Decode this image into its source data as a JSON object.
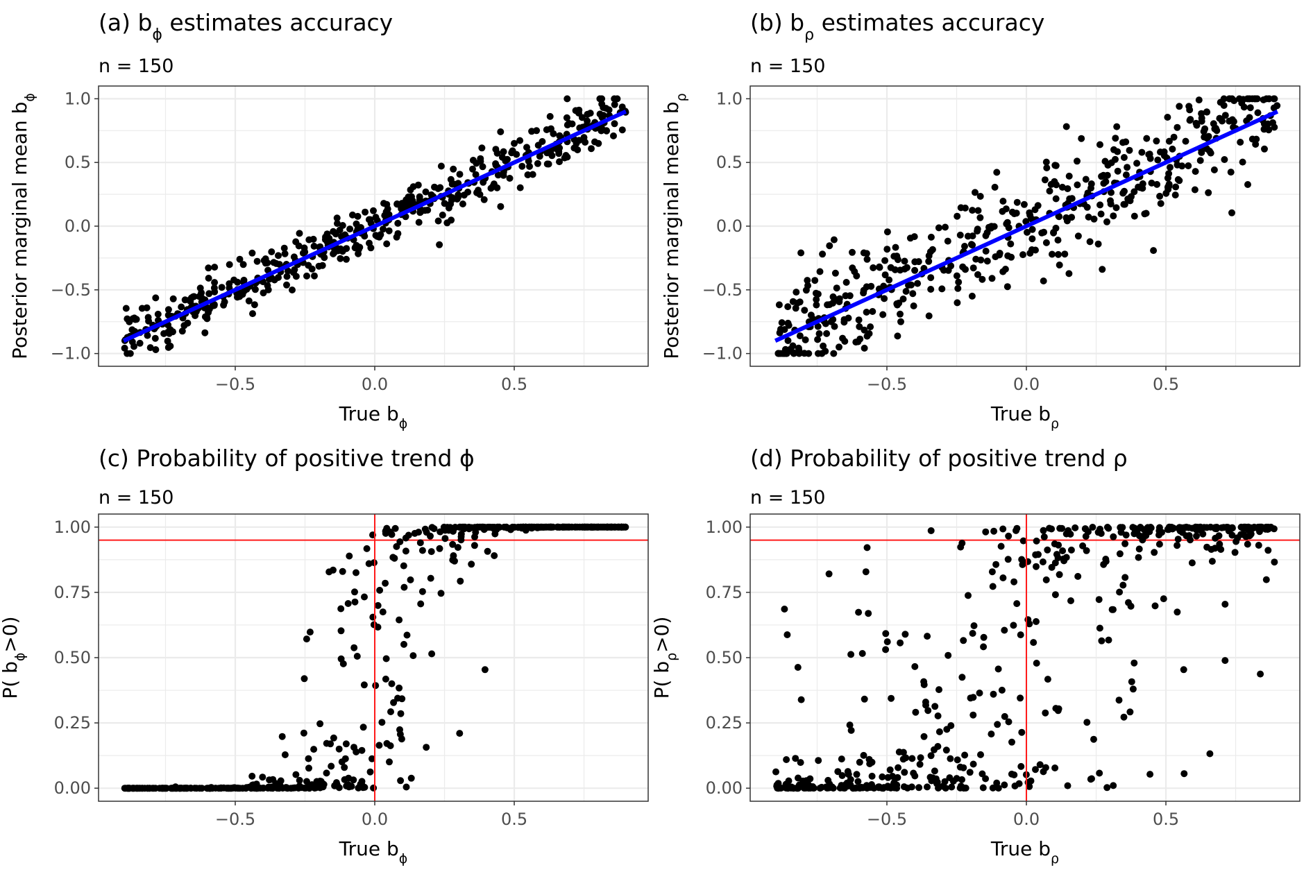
{
  "figure": {
    "panels": [
      "a",
      "b",
      "c",
      "d"
    ]
  },
  "colors": {
    "point": "#000000",
    "fit_line": "#0000ff",
    "reference_line": "#ff1a1a",
    "grid": "#ebebeb",
    "panel_border": "#333333",
    "tick_text": "#4d4d4d"
  },
  "chart_data": [
    {
      "id": "a",
      "type": "scatter",
      "title_prefix": "(a)  b",
      "title_subscript": "ϕ",
      "title_suffix": " estimates accuracy",
      "subtitle": "n = 150",
      "xlabel": "True  b",
      "xlabel_subscript": "ϕ",
      "ylabel": "Posterior marginal mean b",
      "ylabel_subscript": "ϕ",
      "xlim": [
        -0.99,
        0.98
      ],
      "ylim": [
        -1.1,
        1.1
      ],
      "xticks": [
        -0.5,
        0.0,
        0.5
      ],
      "xtick_labels": [
        "−0.5",
        "0.0",
        "0.5"
      ],
      "yticks": [
        -1.0,
        -0.5,
        0.0,
        0.5,
        1.0
      ],
      "ytick_labels": [
        "−1.0",
        "−0.5",
        "0.0",
        "0.5",
        "1.0"
      ],
      "grid": true,
      "fit_line": {
        "x": [
          -0.9,
          0.9
        ],
        "y": [
          -0.9,
          0.9
        ]
      },
      "reference_lines": [],
      "generator": {
        "model": "linear",
        "n_points": 500,
        "x_range": [
          -0.9,
          0.9
        ],
        "noise_sd": 0.1,
        "seed": 11
      },
      "notes": "Points tightly scattered around the 1:1 line from (-0.9,-0.9) to (0.9,0.9)"
    },
    {
      "id": "b",
      "type": "scatter",
      "title_prefix": "(b)  b",
      "title_subscript": "ρ",
      "title_suffix": " estimates accuracy",
      "subtitle": "n = 150",
      "xlabel": "True  b",
      "xlabel_subscript": "ρ",
      "ylabel": "Posterior marginal mean b",
      "ylabel_subscript": "ρ",
      "xlim": [
        -0.99,
        0.98
      ],
      "ylim": [
        -1.1,
        1.1
      ],
      "xticks": [
        -0.5,
        0.0,
        0.5
      ],
      "xtick_labels": [
        "−0.5",
        "0.0",
        "0.5"
      ],
      "yticks": [
        -1.0,
        -0.5,
        0.0,
        0.5,
        1.0
      ],
      "ytick_labels": [
        "−1.0",
        "−0.5",
        "0.0",
        "0.5",
        "1.0"
      ],
      "grid": true,
      "fit_line": {
        "x": [
          -0.9,
          0.9
        ],
        "y": [
          -0.9,
          0.9
        ]
      },
      "reference_lines": [],
      "generator": {
        "model": "linear",
        "n_points": 500,
        "x_range": [
          -0.9,
          0.9
        ],
        "noise_sd": 0.22,
        "seed": 23
      },
      "notes": "Wider scatter around the 1:1 line; values clipped to [-1, 1]; outliers at (-0.26, 1.0) and (0.14, -0.96)"
    },
    {
      "id": "c",
      "type": "scatter",
      "title": "(c) Probability of positive trend ϕ",
      "subtitle": "n = 150",
      "xlabel": "True  b",
      "xlabel_subscript": "ϕ",
      "ylabel": "P( b",
      "ylabel_subscript": "ϕ",
      "ylabel_suffix": ">0)",
      "xlim": [
        -0.99,
        0.98
      ],
      "ylim": [
        -0.05,
        1.05
      ],
      "xticks": [
        -0.5,
        0.0,
        0.5
      ],
      "xtick_labels": [
        "−0.5",
        "0.0",
        "0.5"
      ],
      "yticks": [
        0.0,
        0.25,
        0.5,
        0.75,
        1.0
      ],
      "ytick_labels": [
        "0.00",
        "0.25",
        "0.50",
        "0.75",
        "1.00"
      ],
      "grid": true,
      "reference_lines": [
        {
          "orientation": "horizontal",
          "value": 0.95
        },
        {
          "orientation": "vertical",
          "value": 0.0
        }
      ],
      "generator": {
        "model": "sigmoid",
        "n_points": 500,
        "x_range": [
          -0.9,
          0.9
        ],
        "steepness": 18,
        "noise_sd": 0.6,
        "seed": 37
      },
      "notes": "Sharp sigmoid: near 0 for x<-0.3, near 1 for x>0.3, transition around 0"
    },
    {
      "id": "d",
      "type": "scatter",
      "title": "(d) Probability of positive trend ρ",
      "subtitle": "n = 150",
      "xlabel": "True  b",
      "xlabel_subscript": "ρ",
      "ylabel": "P( b",
      "ylabel_subscript": "ρ",
      "ylabel_suffix": ">0)",
      "xlim": [
        -0.99,
        0.98
      ],
      "ylim": [
        -0.05,
        1.05
      ],
      "xticks": [
        -0.5,
        0.0,
        0.5
      ],
      "xtick_labels": [
        "−0.5",
        "0.0",
        "0.5"
      ],
      "yticks": [
        0.0,
        0.25,
        0.5,
        0.75,
        1.0
      ],
      "ytick_labels": [
        "0.00",
        "0.25",
        "0.50",
        "0.75",
        "1.00"
      ],
      "grid": true,
      "reference_lines": [
        {
          "orientation": "horizontal",
          "value": 0.95
        },
        {
          "orientation": "vertical",
          "value": 0.0
        }
      ],
      "generator": {
        "model": "sigmoid",
        "n_points": 500,
        "x_range": [
          -0.9,
          0.9
        ],
        "steepness": 7,
        "noise_sd": 1.6,
        "seed": 53
      },
      "notes": "Gradual sigmoid with wide spread between x=-0.3 and x=0.5"
    }
  ]
}
